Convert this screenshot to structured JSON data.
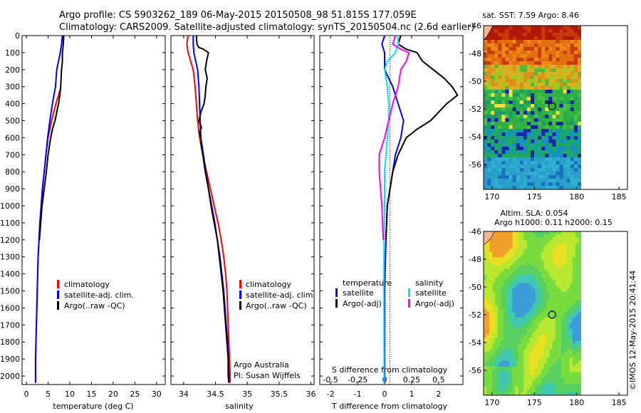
{
  "header": {
    "title_line1": "Argo profile: CS 5903262_189 06-May-2015 20150508_98 51.815S 177.059E",
    "title_line2": "Climatology: CARS2009. Satellite-adjusted climatology: synTS_20150504.nc (2.6d earlier)"
  },
  "colors": {
    "climatology": "#ff0000",
    "satellite": "#0000ff",
    "argo": "#000000",
    "salinity_sat": "#00e5ee",
    "salinity_argo": "#ff00ff",
    "land": "#f4b48c"
  },
  "depth_axis": {
    "ticks": [
      0,
      100,
      200,
      300,
      400,
      500,
      600,
      700,
      800,
      900,
      1000,
      1100,
      1200,
      1300,
      1400,
      1500,
      1600,
      1700,
      1800,
      1900,
      2000
    ],
    "ylim": [
      0,
      2050
    ]
  },
  "chart_data": [
    {
      "type": "line",
      "xlabel": "temperature (deg C)",
      "xticks": [
        0,
        5,
        10,
        15,
        20,
        25,
        30
      ],
      "xlim": [
        -1,
        32
      ],
      "legend": [
        "climatology",
        "satellite-adj. clim.",
        "Argo(..raw -QC)"
      ],
      "series": [
        {
          "name": "climatology",
          "color": "#ff0000",
          "start_depth": 300,
          "points": [
            [
              8.0,
              300
            ],
            [
              6.8,
              400
            ],
            [
              5.8,
              500
            ],
            [
              5.0,
              600
            ],
            [
              4.5,
              700
            ],
            [
              4.1,
              800
            ],
            [
              3.7,
              900
            ],
            [
              3.4,
              1000
            ],
            [
              3.1,
              1100
            ],
            [
              2.9,
              1200
            ],
            [
              2.7,
              1300
            ],
            [
              2.6,
              1400
            ],
            [
              2.5,
              1500
            ],
            [
              2.4,
              1600
            ],
            [
              2.3,
              1700
            ],
            [
              2.2,
              1800
            ],
            [
              2.1,
              1900
            ],
            [
              2.1,
              2000
            ],
            [
              2.1,
              2040
            ]
          ]
        },
        {
          "name": "satellite-adj. clim.",
          "color": "#0000ff",
          "points": [
            [
              8.3,
              0
            ],
            [
              8.1,
              50
            ],
            [
              7.8,
              100
            ],
            [
              7.4,
              150
            ],
            [
              7.0,
              200
            ],
            [
              6.7,
              300
            ],
            [
              6.0,
              400
            ],
            [
              5.4,
              500
            ],
            [
              4.9,
              600
            ],
            [
              4.5,
              700
            ],
            [
              4.1,
              800
            ],
            [
              3.7,
              900
            ],
            [
              3.4,
              1000
            ],
            [
              3.1,
              1100
            ],
            [
              2.9,
              1200
            ],
            [
              2.7,
              1300
            ],
            [
              2.6,
              1400
            ],
            [
              2.5,
              1500
            ],
            [
              2.4,
              1600
            ],
            [
              2.3,
              1700
            ],
            [
              2.2,
              1800
            ],
            [
              2.1,
              1900
            ],
            [
              2.1,
              2000
            ],
            [
              2.1,
              2040
            ]
          ]
        },
        {
          "name": "Argo(..raw -QC)",
          "color": "#000000",
          "points": [
            [
              8.6,
              0
            ],
            [
              8.5,
              50
            ],
            [
              8.3,
              100
            ],
            [
              8.3,
              150
            ],
            [
              8.1,
              200
            ],
            [
              8.0,
              250
            ],
            [
              7.9,
              300
            ],
            [
              7.7,
              350
            ],
            [
              7.4,
              400
            ],
            [
              7.0,
              450
            ],
            [
              6.6,
              500
            ],
            [
              6.0,
              550
            ],
            [
              5.6,
              600
            ],
            [
              5.3,
              650
            ],
            [
              5.0,
              700
            ],
            [
              4.6,
              800
            ],
            [
              4.1,
              900
            ],
            [
              3.6,
              1000
            ],
            [
              3.3,
              1100
            ],
            [
              3.0,
              1200
            ]
          ]
        }
      ]
    },
    {
      "type": "line",
      "xlabel": "salinity",
      "xticks": [
        34,
        34.5,
        35,
        35.5,
        36
      ],
      "xlim": [
        33.8,
        36.05
      ],
      "legend": [
        "climatology",
        "satellite-adj. clim.",
        "Argo(..raw -QC)"
      ],
      "annotations": [
        "Argo Australia",
        "PI: Susan Wijffels"
      ],
      "series": [
        {
          "name": "climatology",
          "color": "#ff0000",
          "points": [
            [
              34.07,
              0
            ],
            [
              34.05,
              50
            ],
            [
              34.07,
              100
            ],
            [
              34.11,
              150
            ],
            [
              34.15,
              200
            ],
            [
              34.18,
              300
            ],
            [
              34.2,
              400
            ],
            [
              34.22,
              500
            ],
            [
              34.25,
              600
            ],
            [
              34.3,
              700
            ],
            [
              34.36,
              800
            ],
            [
              34.42,
              900
            ],
            [
              34.48,
              1000
            ],
            [
              34.54,
              1100
            ],
            [
              34.59,
              1200
            ],
            [
              34.63,
              1300
            ],
            [
              34.66,
              1400
            ],
            [
              34.68,
              1500
            ],
            [
              34.69,
              1600
            ],
            [
              34.7,
              1700
            ],
            [
              34.71,
              1800
            ],
            [
              34.72,
              1900
            ],
            [
              34.73,
              2000
            ],
            [
              34.73,
              2040
            ]
          ]
        },
        {
          "name": "satellite-adj. clim.",
          "color": "#0000ff",
          "points": [
            [
              34.15,
              0
            ],
            [
              34.15,
              50
            ],
            [
              34.16,
              100
            ],
            [
              34.19,
              150
            ],
            [
              34.22,
              200
            ],
            [
              34.24,
              300
            ],
            [
              34.25,
              400
            ],
            [
              34.26,
              500
            ],
            [
              34.27,
              600
            ],
            [
              34.31,
              700
            ],
            [
              34.35,
              800
            ],
            [
              34.39,
              900
            ],
            [
              34.44,
              1000
            ],
            [
              34.49,
              1100
            ],
            [
              34.53,
              1200
            ],
            [
              34.57,
              1300
            ],
            [
              34.6,
              1400
            ],
            [
              34.63,
              1500
            ],
            [
              34.65,
              1600
            ],
            [
              34.67,
              1700
            ],
            [
              34.69,
              1800
            ],
            [
              34.7,
              1900
            ],
            [
              34.71,
              2000
            ],
            [
              34.71,
              2040
            ]
          ]
        },
        {
          "name": "Argo(..raw -QC)",
          "color": "#000000",
          "points": [
            [
              34.2,
              0
            ],
            [
              34.21,
              50
            ],
            [
              34.24,
              70
            ],
            [
              34.31,
              80
            ],
            [
              34.39,
              100
            ],
            [
              34.36,
              150
            ],
            [
              34.34,
              200
            ],
            [
              34.37,
              250
            ],
            [
              34.35,
              300
            ],
            [
              34.34,
              350
            ],
            [
              34.32,
              400
            ],
            [
              34.27,
              450
            ],
            [
              34.24,
              500
            ],
            [
              34.28,
              540
            ],
            [
              34.25,
              570
            ],
            [
              34.27,
              600
            ],
            [
              34.28,
              650
            ],
            [
              34.3,
              700
            ],
            [
              34.34,
              800
            ],
            [
              34.39,
              900
            ],
            [
              34.43,
              1000
            ],
            [
              34.48,
              1100
            ],
            [
              34.53,
              1200
            ],
            [
              34.56,
              1300
            ],
            [
              34.59,
              1400
            ],
            [
              34.62,
              1500
            ],
            [
              34.64,
              1600
            ],
            [
              34.66,
              1700
            ],
            [
              34.68,
              1800
            ],
            [
              34.7,
              1900
            ],
            [
              34.7,
              2000
            ],
            [
              34.71,
              2040
            ]
          ]
        }
      ]
    },
    {
      "type": "line",
      "xlabel": "T difference from climatology",
      "xlabel_top": "S difference from climatology",
      "xticks": [
        -2,
        -1,
        0,
        1,
        2
      ],
      "xticks_top": [
        "-0.5",
        "-0.25",
        "0",
        "0.25",
        "0.5"
      ],
      "xlim": [
        -2.4,
        2.9
      ],
      "legend_left_title": "temperature",
      "legend_right_title": "salinity",
      "legend_left": [
        "satellite",
        "Argo(-adj)"
      ],
      "legend_right": [
        "satellite",
        "Argo(-adj)"
      ],
      "series": [
        {
          "name": "temperature satellite",
          "color": "#0000ff",
          "points": [
            [
              0.0,
              0
            ],
            [
              -0.1,
              50
            ],
            [
              0.0,
              100
            ],
            [
              0.0,
              150
            ],
            [
              0.0,
              200
            ],
            [
              0.3,
              300
            ],
            [
              0.5,
              400
            ],
            [
              0.7,
              500
            ],
            [
              0.6,
              600
            ],
            [
              0.4,
              700
            ],
            [
              0.3,
              800
            ],
            [
              0.2,
              900
            ],
            [
              0.1,
              1000
            ],
            [
              0.05,
              1200
            ],
            [
              0.0,
              1500
            ],
            [
              0.0,
              2040
            ]
          ]
        },
        {
          "name": "temperature Argo(-adj)",
          "color": "#000000",
          "points": [
            [
              0.6,
              0
            ],
            [
              0.5,
              50
            ],
            [
              0.8,
              80
            ],
            [
              1.2,
              100
            ],
            [
              1.4,
              150
            ],
            [
              1.8,
              200
            ],
            [
              2.2,
              250
            ],
            [
              2.5,
              300
            ],
            [
              2.7,
              350
            ],
            [
              2.3,
              400
            ],
            [
              2.0,
              450
            ],
            [
              1.7,
              500
            ],
            [
              1.2,
              550
            ],
            [
              0.8,
              600
            ],
            [
              0.5,
              700
            ],
            [
              0.3,
              800
            ],
            [
              0.2,
              900
            ],
            [
              0.1,
              1000
            ],
            [
              0.05,
              1200
            ]
          ]
        },
        {
          "name": "salinity satellite",
          "color": "#00e5ee",
          "points": [
            [
              0.5,
              0
            ],
            [
              0.5,
              50
            ],
            [
              0.4,
              100
            ],
            [
              0.1,
              150
            ],
            [
              0.0,
              200
            ],
            [
              0.1,
              300
            ],
            [
              0.15,
              400
            ],
            [
              0.15,
              500
            ],
            [
              0.1,
              600
            ],
            [
              0.05,
              700
            ],
            [
              0.0,
              800
            ],
            [
              0.0,
              1000
            ],
            [
              -0.02,
              1200
            ],
            [
              -0.03,
              1500
            ],
            [
              -0.02,
              1900
            ],
            [
              -0.02,
              2040
            ]
          ]
        },
        {
          "name": "salinity Argo(-adj)",
          "color": "#ff00ff",
          "points": [
            [
              0.4,
              0
            ],
            [
              0.3,
              50
            ],
            [
              0.6,
              80
            ],
            [
              0.9,
              100
            ],
            [
              0.8,
              150
            ],
            [
              0.6,
              200
            ],
            [
              0.5,
              300
            ],
            [
              0.3,
              400
            ],
            [
              0.15,
              500
            ],
            [
              0.0,
              600
            ],
            [
              -0.2,
              700
            ],
            [
              -0.2,
              800
            ],
            [
              -0.15,
              900
            ],
            [
              -0.1,
              1000
            ],
            [
              -0.05,
              1200
            ]
          ]
        }
      ]
    }
  ],
  "maps": {
    "sst": {
      "title": "sat. SST: 7.59 Argo: 8.46",
      "xticks": [
        170,
        175,
        180,
        185
      ],
      "yticks": [
        -46,
        -48,
        -50,
        -52,
        -54,
        -56
      ],
      "lon_range": [
        169,
        180
      ],
      "lat_range": [
        -46,
        -57.8
      ],
      "marker": [
        177.1,
        -51.8
      ]
    },
    "sla": {
      "title_line1": "Altim. SLA: 0.054",
      "title_line2": "Argo h1000: 0.11 h2000: 0.15",
      "xticks": [
        170,
        175,
        180,
        185
      ],
      "yticks": [
        -46,
        -48,
        -50,
        -52,
        -54,
        -56
      ],
      "lon_range": [
        169,
        180
      ],
      "lat_range": [
        -46,
        -57.8
      ],
      "marker": [
        177.1,
        -52.0
      ]
    }
  },
  "footer": {
    "credit": "©IMOS 12-May-2015 20:41:44"
  }
}
